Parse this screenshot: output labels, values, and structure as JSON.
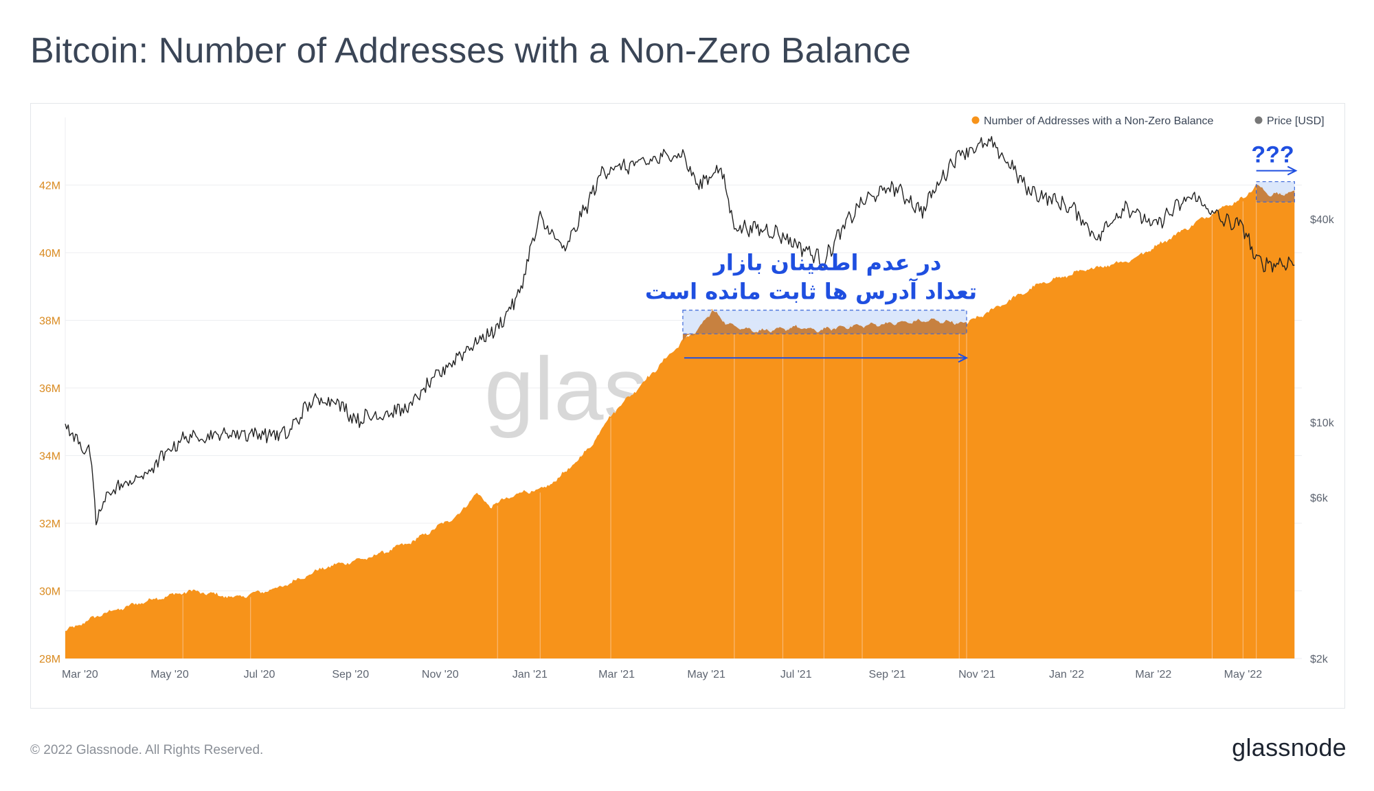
{
  "title": "Bitcoin: Number of Addresses with a Non-Zero Balance",
  "footer": {
    "copyright": "© 2022 Glassnode. All Rights Reserved.",
    "logo": "glassnode"
  },
  "watermark": "glass",
  "colors": {
    "addresses": "#f7931a",
    "price": "#222222",
    "left_axis_text": "#d98a20",
    "right_axis_text": "#5d6470",
    "grid": "#eceef1",
    "annotation": "#1f4fe0",
    "highlight_fill": "#d9e6fb",
    "highlight_area": "#c78140",
    "vertical_lines": "#f9bd7e"
  },
  "chart_data": {
    "type": "area",
    "legend": {
      "placement": "top-right",
      "items": [
        {
          "label": "Number of Addresses with a Non-Zero Balance",
          "color": "#f7931a"
        },
        {
          "label": "Price [USD]",
          "color": "#777777"
        }
      ]
    },
    "x_axis": {
      "type": "date",
      "range": [
        "2020-02-20",
        "2022-06-10"
      ],
      "tick_labels": [
        "Mar '20",
        "May '20",
        "Jul '20",
        "Sep '20",
        "Nov '20",
        "Jan '21",
        "Mar '21",
        "May '21",
        "Jul '21",
        "Sep '21",
        "Nov '21",
        "Jan '22",
        "Mar '22",
        "May '22"
      ],
      "tick_dates": [
        "2020-03-01",
        "2020-05-01",
        "2020-07-01",
        "2020-09-01",
        "2020-11-01",
        "2021-01-01",
        "2021-03-01",
        "2021-05-01",
        "2021-07-01",
        "2021-09-01",
        "2021-11-01",
        "2022-01-01",
        "2022-03-01",
        "2022-05-01"
      ]
    },
    "y_left": {
      "label": "",
      "range": [
        28000000,
        44000000
      ],
      "tick_values": [
        28000000,
        30000000,
        32000000,
        34000000,
        36000000,
        38000000,
        40000000,
        42000000
      ],
      "tick_labels": [
        "28M",
        "30M",
        "32M",
        "34M",
        "36M",
        "38M",
        "40M",
        "42M"
      ]
    },
    "y_right": {
      "label": "",
      "scale": "log",
      "range": [
        2000,
        80000
      ],
      "tick_values": [
        2000,
        6000,
        10000,
        40000
      ],
      "tick_labels": [
        "$2k",
        "$6k",
        "$10k",
        "$40k"
      ]
    },
    "grid": true,
    "series": [
      {
        "name": "Number of Addresses with a Non-Zero Balance",
        "axis": "left",
        "style": "area",
        "points": [
          [
            "2020-02-20",
            28800000
          ],
          [
            "2020-03-15",
            29300000
          ],
          [
            "2020-04-15",
            29700000
          ],
          [
            "2020-05-15",
            30000000
          ],
          [
            "2020-06-15",
            29800000
          ],
          [
            "2020-07-15",
            30100000
          ],
          [
            "2020-08-15",
            30700000
          ],
          [
            "2020-09-15",
            31000000
          ],
          [
            "2020-10-15",
            31500000
          ],
          [
            "2020-11-15",
            32300000
          ],
          [
            "2020-11-25",
            32900000
          ],
          [
            "2020-12-05",
            32500000
          ],
          [
            "2020-12-25",
            32900000
          ],
          [
            "2021-01-10",
            33000000
          ],
          [
            "2021-01-25",
            33500000
          ],
          [
            "2021-02-10",
            34200000
          ],
          [
            "2021-02-25",
            35200000
          ],
          [
            "2021-03-20",
            36200000
          ],
          [
            "2021-04-15",
            37400000
          ],
          [
            "2021-04-25",
            37700000
          ],
          [
            "2021-05-05",
            38300000
          ],
          [
            "2021-05-15",
            37900000
          ],
          [
            "2021-06-01",
            37700000
          ],
          [
            "2021-06-15",
            37700000
          ],
          [
            "2021-07-01",
            37800000
          ],
          [
            "2021-07-15",
            37700000
          ],
          [
            "2021-08-01",
            37800000
          ],
          [
            "2021-09-01",
            37900000
          ],
          [
            "2021-10-01",
            38000000
          ],
          [
            "2021-10-25",
            37900000
          ],
          [
            "2021-11-15",
            38400000
          ],
          [
            "2021-12-15",
            39100000
          ],
          [
            "2022-01-15",
            39500000
          ],
          [
            "2022-02-15",
            39800000
          ],
          [
            "2022-03-15",
            40500000
          ],
          [
            "2022-04-15",
            41300000
          ],
          [
            "2022-05-01",
            41600000
          ],
          [
            "2022-05-10",
            42000000
          ],
          [
            "2022-05-20",
            41700000
          ],
          [
            "2022-06-05",
            41800000
          ]
        ]
      },
      {
        "name": "Price [USD]",
        "axis": "right",
        "style": "line",
        "points": [
          [
            "2020-02-20",
            9700
          ],
          [
            "2020-03-08",
            8000
          ],
          [
            "2020-03-12",
            5000
          ],
          [
            "2020-03-20",
            6200
          ],
          [
            "2020-04-15",
            7000
          ],
          [
            "2020-05-10",
            9000
          ],
          [
            "2020-06-15",
            9300
          ],
          [
            "2020-07-20",
            9200
          ],
          [
            "2020-08-05",
            11500
          ],
          [
            "2020-08-20",
            11800
          ],
          [
            "2020-09-05",
            10200
          ],
          [
            "2020-10-10",
            11000
          ],
          [
            "2020-10-25",
            13000
          ],
          [
            "2020-11-15",
            16000
          ],
          [
            "2020-12-10",
            19000
          ],
          [
            "2020-12-25",
            24000
          ],
          [
            "2021-01-08",
            40000
          ],
          [
            "2021-01-25",
            32000
          ],
          [
            "2021-02-10",
            45000
          ],
          [
            "2021-02-20",
            56000
          ],
          [
            "2021-03-15",
            58000
          ],
          [
            "2021-04-14",
            63000
          ],
          [
            "2021-04-25",
            50000
          ],
          [
            "2021-05-10",
            57000
          ],
          [
            "2021-05-20",
            38000
          ],
          [
            "2021-06-15",
            37000
          ],
          [
            "2021-07-20",
            30000
          ],
          [
            "2021-08-15",
            45000
          ],
          [
            "2021-09-05",
            50000
          ],
          [
            "2021-09-25",
            42000
          ],
          [
            "2021-10-20",
            63000
          ],
          [
            "2021-11-10",
            67000
          ],
          [
            "2021-11-25",
            57000
          ],
          [
            "2021-12-05",
            49000
          ],
          [
            "2022-01-05",
            43000
          ],
          [
            "2022-01-22",
            35000
          ],
          [
            "2022-02-10",
            44000
          ],
          [
            "2022-03-01",
            38000
          ],
          [
            "2022-03-28",
            47000
          ],
          [
            "2022-04-15",
            40000
          ],
          [
            "2022-05-01",
            38000
          ],
          [
            "2022-05-10",
            30000
          ],
          [
            "2022-05-20",
            29500
          ],
          [
            "2022-06-05",
            29800
          ]
        ]
      }
    ],
    "annotations": [
      {
        "type": "text",
        "lines": [
          "در عدم اطمینان بازار",
          "تعداد آدرس ها ثابت مانده است"
        ],
        "range_start": "2021-04-15",
        "range_end": "2021-10-25",
        "y_range": [
          37600000,
          38300000
        ]
      },
      {
        "type": "text",
        "lines": [
          "???"
        ],
        "range_start": "2022-05-10",
        "range_end": "2022-06-05",
        "y_range": [
          41500000,
          42100000
        ]
      }
    ],
    "vertical_event_dates": [
      "2020-05-10",
      "2020-06-25",
      "2020-12-10",
      "2021-01-08",
      "2021-02-25",
      "2021-05-20",
      "2021-06-22",
      "2021-07-20",
      "2021-08-15",
      "2021-10-20",
      "2021-10-25",
      "2022-04-10",
      "2022-05-01",
      "2022-05-10"
    ]
  }
}
